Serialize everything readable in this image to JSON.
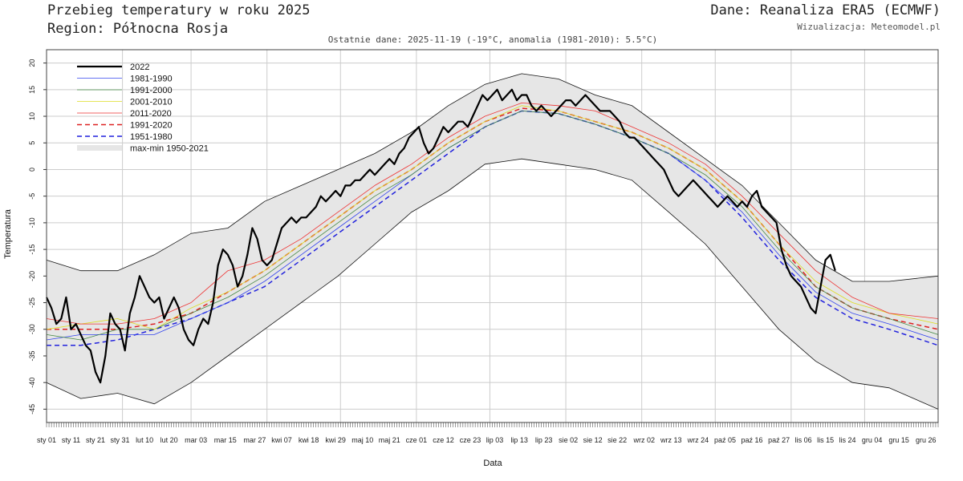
{
  "header": {
    "title": "Przebieg temperatury w roku 2025",
    "region": "Region: Północna Rosja",
    "source": "Dane: Reanaliza ERA5 (ECMWF)",
    "visualization": "Wizualizacja: Meteomodel.pl",
    "subtitle": "Ostatnie dane: 2025-11-19 (-19°C, anomalia (1981-2010): 5.5°C)"
  },
  "chart_data": {
    "type": "line",
    "xlabel": "Data",
    "ylabel": "Temperatura",
    "ylim": [
      -47.5,
      22.5
    ],
    "yticks": [
      -45,
      -40,
      -35,
      -30,
      -25,
      -20,
      -15,
      -10,
      -5,
      0,
      5,
      10,
      15,
      20
    ],
    "xlim": [
      1,
      365
    ],
    "x_ticks": [
      {
        "day": 1,
        "label": "sty 01"
      },
      {
        "day": 11,
        "label": "sty 11"
      },
      {
        "day": 21,
        "label": "sty 21"
      },
      {
        "day": 31,
        "label": "sty 31"
      },
      {
        "day": 41,
        "label": "lut 10"
      },
      {
        "day": 51,
        "label": "lut 20"
      },
      {
        "day": 62,
        "label": "mar 03"
      },
      {
        "day": 74,
        "label": "mar 15"
      },
      {
        "day": 86,
        "label": "mar 27"
      },
      {
        "day": 97,
        "label": "kwi 07"
      },
      {
        "day": 108,
        "label": "kwi 18"
      },
      {
        "day": 119,
        "label": "kwi 29"
      },
      {
        "day": 130,
        "label": "maj 10"
      },
      {
        "day": 141,
        "label": "maj 21"
      },
      {
        "day": 152,
        "label": "cze 01"
      },
      {
        "day": 163,
        "label": "cze 12"
      },
      {
        "day": 174,
        "label": "cze 23"
      },
      {
        "day": 184,
        "label": "lip 03"
      },
      {
        "day": 194,
        "label": "lip 13"
      },
      {
        "day": 204,
        "label": "lip 23"
      },
      {
        "day": 214,
        "label": "sie 02"
      },
      {
        "day": 224,
        "label": "sie 12"
      },
      {
        "day": 234,
        "label": "sie 22"
      },
      {
        "day": 245,
        "label": "wrz 02"
      },
      {
        "day": 256,
        "label": "wrz 13"
      },
      {
        "day": 267,
        "label": "wrz 24"
      },
      {
        "day": 278,
        "label": "paź 05"
      },
      {
        "day": 289,
        "label": "paź 16"
      },
      {
        "day": 300,
        "label": "paź 27"
      },
      {
        "day": 310,
        "label": "lis 06"
      },
      {
        "day": 319,
        "label": "lis 15"
      },
      {
        "day": 328,
        "label": "lis 24"
      },
      {
        "day": 338,
        "label": "gru 04"
      },
      {
        "day": 349,
        "label": "gru 15"
      },
      {
        "day": 360,
        "label": "gru 26"
      }
    ],
    "grid": true,
    "legend_position": "top-left",
    "band": {
      "name": "max-min 1950-2021",
      "color": "#e6e6e6",
      "x": [
        1,
        15,
        30,
        45,
        60,
        75,
        90,
        105,
        120,
        135,
        150,
        165,
        180,
        195,
        210,
        225,
        240,
        255,
        270,
        285,
        300,
        315,
        330,
        345,
        365
      ],
      "upper": [
        -17,
        -19,
        -19,
        -16,
        -12,
        -11,
        -6,
        -3,
        0,
        3,
        7,
        12,
        16,
        18,
        17,
        14,
        12,
        7,
        2,
        -3,
        -10,
        -17,
        -21,
        -21,
        -20
      ],
      "lower": [
        -40,
        -43,
        -42,
        -44,
        -40,
        -35,
        -30,
        -25,
        -20,
        -14,
        -8,
        -4,
        1,
        2,
        1,
        0,
        -2,
        -8,
        -14,
        -22,
        -30,
        -36,
        -40,
        -41,
        -45
      ]
    },
    "series": [
      {
        "name": "1951-1980",
        "color": "#2222dd",
        "dash": "6,4",
        "width": 1.5,
        "x": [
          1,
          15,
          30,
          45,
          60,
          75,
          90,
          105,
          120,
          135,
          150,
          165,
          180,
          195,
          210,
          225,
          240,
          255,
          270,
          285,
          300,
          315,
          330,
          345,
          365
        ],
        "y": [
          -33,
          -33,
          -32,
          -30,
          -28,
          -25,
          -22,
          -17,
          -12,
          -7,
          -2,
          3,
          8,
          11,
          10.5,
          8.5,
          6,
          3,
          -2,
          -9,
          -17,
          -24,
          -28,
          -30,
          -33
        ]
      },
      {
        "name": "1991-2020",
        "color": "#dd2222",
        "dash": "6,4",
        "width": 1.5,
        "x": [
          1,
          15,
          30,
          45,
          60,
          75,
          90,
          105,
          120,
          135,
          150,
          165,
          180,
          195,
          210,
          225,
          240,
          255,
          270,
          285,
          300,
          315,
          330,
          345,
          365
        ],
        "y": [
          -30,
          -30,
          -30,
          -29,
          -27,
          -23,
          -19,
          -14,
          -9,
          -4,
          0,
          5,
          9,
          11.5,
          11,
          9,
          7,
          4,
          0,
          -6,
          -14,
          -22,
          -26,
          -28,
          -30
        ]
      },
      {
        "name": "1981-1990",
        "color": "#3344ee",
        "dash": "",
        "width": 0.8,
        "x": [
          1,
          15,
          30,
          45,
          60,
          75,
          90,
          105,
          120,
          135,
          150,
          165,
          180,
          195,
          210,
          225,
          240,
          255,
          270,
          285,
          300,
          315,
          330,
          345,
          365
        ],
        "y": [
          -32,
          -31,
          -31,
          -31,
          -28,
          -25,
          -21,
          -16,
          -11,
          -6,
          -1,
          4,
          8,
          11,
          10.5,
          8.5,
          6,
          3,
          -2,
          -8,
          -16,
          -23,
          -27,
          -29,
          -32
        ]
      },
      {
        "name": "1991-2000",
        "color": "#448844",
        "dash": "",
        "width": 0.8,
        "x": [
          1,
          15,
          30,
          45,
          60,
          75,
          90,
          105,
          120,
          135,
          150,
          165,
          180,
          195,
          210,
          225,
          240,
          255,
          270,
          285,
          300,
          315,
          330,
          345,
          365
        ],
        "y": [
          -31,
          -32,
          -30,
          -30,
          -27,
          -24,
          -20,
          -15,
          -10,
          -5,
          -1,
          4,
          8,
          11,
          10.5,
          8.5,
          6,
          3,
          -1,
          -7,
          -15,
          -22,
          -26,
          -28,
          -31
        ]
      },
      {
        "name": "2001-2010",
        "color": "#dddd22",
        "dash": "",
        "width": 0.8,
        "x": [
          1,
          15,
          30,
          45,
          60,
          75,
          90,
          105,
          120,
          135,
          150,
          165,
          180,
          195,
          210,
          225,
          240,
          255,
          270,
          285,
          300,
          315,
          330,
          345,
          365
        ],
        "y": [
          -30,
          -29,
          -28,
          -30,
          -26,
          -23,
          -19,
          -14,
          -9,
          -4,
          0,
          5,
          9,
          12,
          11,
          9,
          7,
          4,
          0,
          -6,
          -14,
          -21,
          -25,
          -27,
          -29
        ]
      },
      {
        "name": "2011-2020",
        "color": "#ee3333",
        "dash": "",
        "width": 0.8,
        "x": [
          1,
          15,
          30,
          45,
          60,
          75,
          90,
          105,
          120,
          135,
          150,
          165,
          180,
          195,
          210,
          225,
          240,
          255,
          270,
          285,
          300,
          315,
          330,
          345,
          365
        ],
        "y": [
          -28,
          -29,
          -29,
          -28,
          -25,
          -19,
          -17,
          -13,
          -8,
          -3,
          1,
          6,
          10,
          12.5,
          12,
          11,
          8,
          5,
          1,
          -5,
          -12,
          -19,
          -24,
          -27,
          -28
        ]
      },
      {
        "name": "2022",
        "color": "#000000",
        "dash": "",
        "width": 2.2,
        "x": [
          1,
          3,
          5,
          7,
          9,
          11,
          13,
          15,
          17,
          19,
          21,
          23,
          25,
          27,
          29,
          31,
          33,
          35,
          37,
          39,
          41,
          43,
          45,
          47,
          49,
          51,
          53,
          55,
          57,
          59,
          61,
          63,
          65,
          67,
          69,
          71,
          73,
          75,
          77,
          79,
          81,
          83,
          85,
          87,
          89,
          91,
          93,
          95,
          97,
          99,
          101,
          103,
          105,
          107,
          109,
          111,
          113,
          115,
          117,
          119,
          121,
          123,
          125,
          127,
          129,
          131,
          133,
          135,
          137,
          139,
          141,
          143,
          145,
          147,
          149,
          151,
          153,
          155,
          157,
          159,
          161,
          163,
          165,
          167,
          169,
          171,
          173,
          175,
          177,
          179,
          181,
          183,
          185,
          187,
          189,
          191,
          193,
          195,
          197,
          199,
          201,
          203,
          205,
          207,
          209,
          211,
          213,
          215,
          217,
          219,
          221,
          223,
          225,
          227,
          229,
          231,
          233,
          235,
          237,
          239,
          241,
          243,
          245,
          247,
          249,
          251,
          253,
          255,
          257,
          259,
          261,
          263,
          265,
          267,
          269,
          271,
          273,
          275,
          277,
          279,
          281,
          283,
          285,
          287,
          289,
          291,
          293,
          295,
          297,
          299,
          301,
          303,
          305,
          307,
          309,
          311,
          313,
          315,
          317,
          319,
          321,
          323
        ],
        "y": [
          -24,
          -26,
          -29,
          -28,
          -24,
          -30,
          -29,
          -31,
          -33,
          -34,
          -38,
          -40,
          -35,
          -27,
          -29,
          -30,
          -34,
          -27,
          -24,
          -20,
          -22,
          -24,
          -25,
          -24,
          -28,
          -26,
          -24,
          -26,
          -30,
          -32,
          -33,
          -30,
          -28,
          -29,
          -25,
          -18,
          -15,
          -16,
          -18,
          -22,
          -20,
          -16,
          -11,
          -13,
          -17,
          -18,
          -17,
          -14,
          -11,
          -10,
          -9,
          -10,
          -9,
          -9,
          -8,
          -7,
          -5,
          -6,
          -5,
          -4,
          -5,
          -3,
          -3,
          -2,
          -2,
          -1,
          0,
          -1,
          0,
          1,
          2,
          1,
          3,
          4,
          6,
          7,
          8,
          5,
          3,
          4,
          6,
          8,
          7,
          8,
          9,
          9,
          8,
          10,
          12,
          14,
          13,
          14,
          15,
          13,
          14,
          15,
          13,
          14,
          14,
          12,
          11,
          12,
          11,
          10,
          11,
          12,
          13,
          13,
          12,
          13,
          14,
          13,
          12,
          11,
          11,
          11,
          10,
          9,
          7,
          6,
          6,
          5,
          4,
          3,
          2,
          1,
          0,
          -2,
          -4,
          -5,
          -4,
          -3,
          -2,
          -3,
          -4,
          -5,
          -6,
          -7,
          -6,
          -5,
          -6,
          -7,
          -6,
          -7,
          -5,
          -4,
          -7,
          -8,
          -9,
          -10,
          -15,
          -18,
          -20,
          -21,
          -22,
          -24,
          -26,
          -27,
          -22,
          -17,
          -16,
          -19
        ]
      }
    ]
  }
}
